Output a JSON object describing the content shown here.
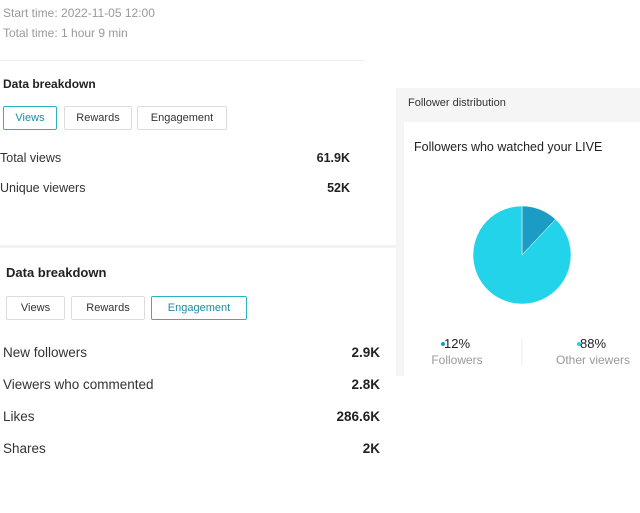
{
  "session": {
    "start_time": "Start time: 2022-11-05 12:00",
    "total_time": "Total time: 1 hour 9 min"
  },
  "breakdowns": [
    {
      "title": "Data breakdown",
      "tabs": [
        "Views",
        "Rewards",
        "Engagement"
      ],
      "selected_tab": 0,
      "rows": [
        [
          "Total views",
          "61.9K"
        ],
        [
          "Unique viewers",
          "52K"
        ]
      ]
    },
    {
      "title": "Data breakdown",
      "tabs": [
        "Views",
        "Rewards",
        "Engagement"
      ],
      "selected_tab": 2,
      "rows": [
        [
          "New followers",
          "2.9K"
        ],
        [
          "Viewers who commented",
          "2.8K"
        ],
        [
          "Likes",
          "286.6K"
        ],
        [
          "Shares",
          "2K"
        ]
      ]
    }
  ],
  "follower_distribution": {
    "title": "Follower distribution",
    "chart_data": {
      "type": "pie",
      "title": "Followers who watched your LIVE",
      "categories": [
        "Followers",
        "Other viewers"
      ],
      "values": [
        12,
        88
      ],
      "value_labels": [
        "12%",
        "88%"
      ],
      "colors": [
        "#1a9cc4",
        "#22d3ea"
      ]
    }
  }
}
